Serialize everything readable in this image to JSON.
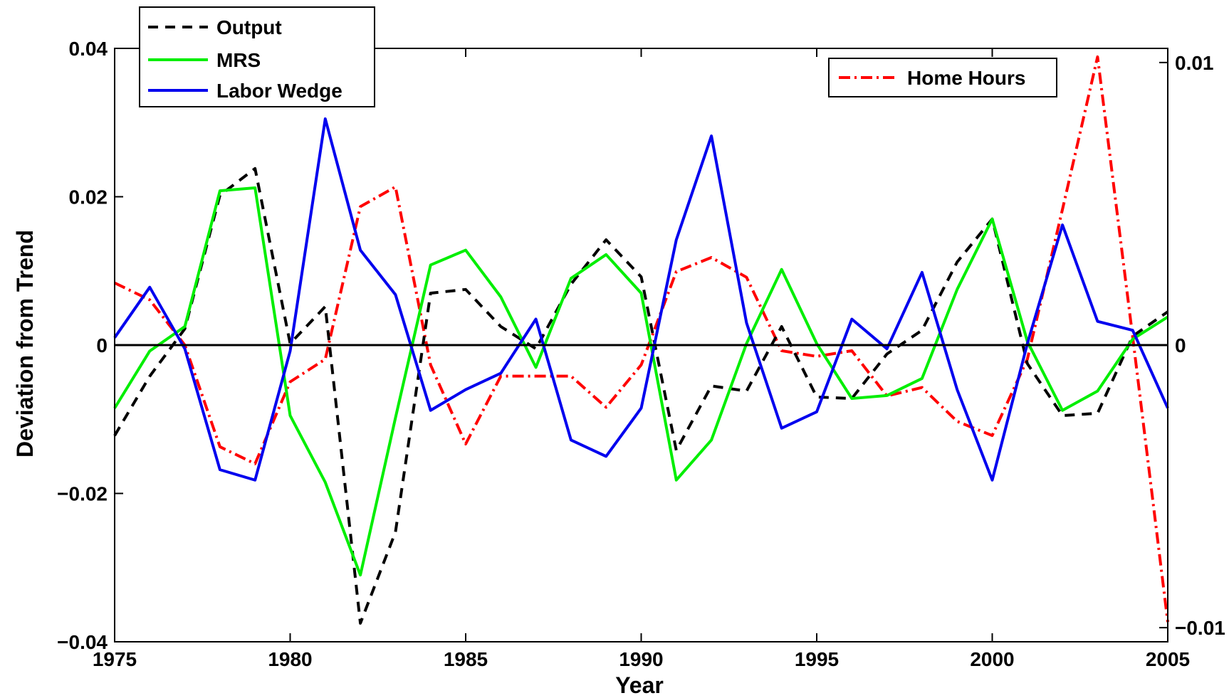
{
  "chart_data": {
    "type": "line",
    "xlabel": "Year",
    "ylabel": "Deviation from Trend",
    "xlim": [
      1975,
      2005
    ],
    "ylim": [
      -0.04,
      0.04
    ],
    "y2lim": [
      -0.0105,
      0.0105
    ],
    "x_ticks": [
      1975,
      1980,
      1985,
      1990,
      1995,
      2000,
      2005
    ],
    "x_tick_labels": [
      "1975",
      "1980",
      "1985",
      "1990",
      "1995",
      "2000",
      "2005"
    ],
    "y_ticks": [
      -0.04,
      -0.02,
      0,
      0.02,
      0.04
    ],
    "y_tick_labels": [
      "−0.04",
      "−0.02",
      "0",
      "0.02",
      "0.04"
    ],
    "y2_ticks": [
      -0.01,
      0,
      0.01
    ],
    "y2_tick_labels": [
      "−0.01",
      "0",
      "0.01"
    ],
    "grid": false,
    "legend_left": {
      "placement": "top-left",
      "entries": [
        "Output",
        "MRS",
        "Labor Wedge"
      ]
    },
    "legend_right": {
      "placement": "top-right",
      "entries": [
        "Home Hours"
      ]
    },
    "x": [
      1975,
      1976,
      1977,
      1978,
      1979,
      1980,
      1981,
      1982,
      1983,
      1984,
      1985,
      1986,
      1987,
      1988,
      1989,
      1990,
      1991,
      1992,
      1993,
      1994,
      1995,
      1996,
      1997,
      1998,
      1999,
      2000,
      2001,
      2002,
      2003,
      2004,
      2005
    ],
    "series": [
      {
        "name": "Output",
        "axis": "left",
        "color": "#000000",
        "style": "dashed",
        "values": [
          -0.0122,
          -0.0042,
          0.0022,
          0.0202,
          0.0238,
          0.0002,
          0.0052,
          -0.0375,
          -0.0252,
          0.007,
          0.0075,
          0.0025,
          -0.0005,
          0.0082,
          0.0142,
          0.0092,
          -0.0142,
          -0.0055,
          -0.0062,
          0.0025,
          -0.007,
          -0.0072,
          -0.0012,
          0.002,
          0.0112,
          0.017,
          -0.0025,
          -0.0095,
          -0.0092,
          0.0012,
          0.0045
        ]
      },
      {
        "name": "MRS",
        "axis": "left",
        "color": "#00ee00",
        "style": "solid",
        "values": [
          -0.0085,
          -0.0008,
          0.0025,
          0.0208,
          0.0212,
          -0.0095,
          -0.0185,
          -0.031,
          -0.0098,
          0.0108,
          0.0128,
          0.0065,
          -0.003,
          0.009,
          0.0122,
          0.007,
          -0.0182,
          -0.0128,
          0.0002,
          0.0102,
          0.0002,
          -0.0072,
          -0.0068,
          -0.0045,
          0.0075,
          0.017,
          0.0005,
          -0.0088,
          -0.0062,
          0.0008,
          0.0038
        ]
      },
      {
        "name": "Labor Wedge",
        "axis": "left",
        "color": "#0000ee",
        "style": "solid",
        "values": [
          0.001,
          0.0078,
          -0.0005,
          -0.0168,
          -0.0182,
          -0.0008,
          0.0305,
          0.0128,
          0.0068,
          -0.0088,
          -0.006,
          -0.0038,
          0.0035,
          -0.0128,
          -0.015,
          -0.0085,
          0.0142,
          0.0282,
          0.003,
          -0.0112,
          -0.009,
          0.0035,
          -0.0005,
          0.0098,
          -0.006,
          -0.0182,
          0.0002,
          0.0162,
          0.0032,
          0.002,
          -0.0085
        ]
      },
      {
        "name": "Home Hours",
        "axis": "right",
        "color": "#ff0000",
        "style": "dashdot",
        "values": [
          0.0022,
          0.0016,
          0.0,
          -0.0036,
          -0.0042,
          -0.0013,
          -0.0005,
          0.0049,
          0.0056,
          -0.0007,
          -0.0035,
          -0.0011,
          -0.0011,
          -0.0011,
          -0.0022,
          -0.0007,
          0.0026,
          0.0031,
          0.0024,
          -0.0002,
          -0.0004,
          -0.0002,
          -0.0018,
          -0.0015,
          -0.0027,
          -0.0032,
          -0.0005,
          0.0048,
          0.0102,
          0.0003,
          -0.0098
        ]
      }
    ]
  }
}
